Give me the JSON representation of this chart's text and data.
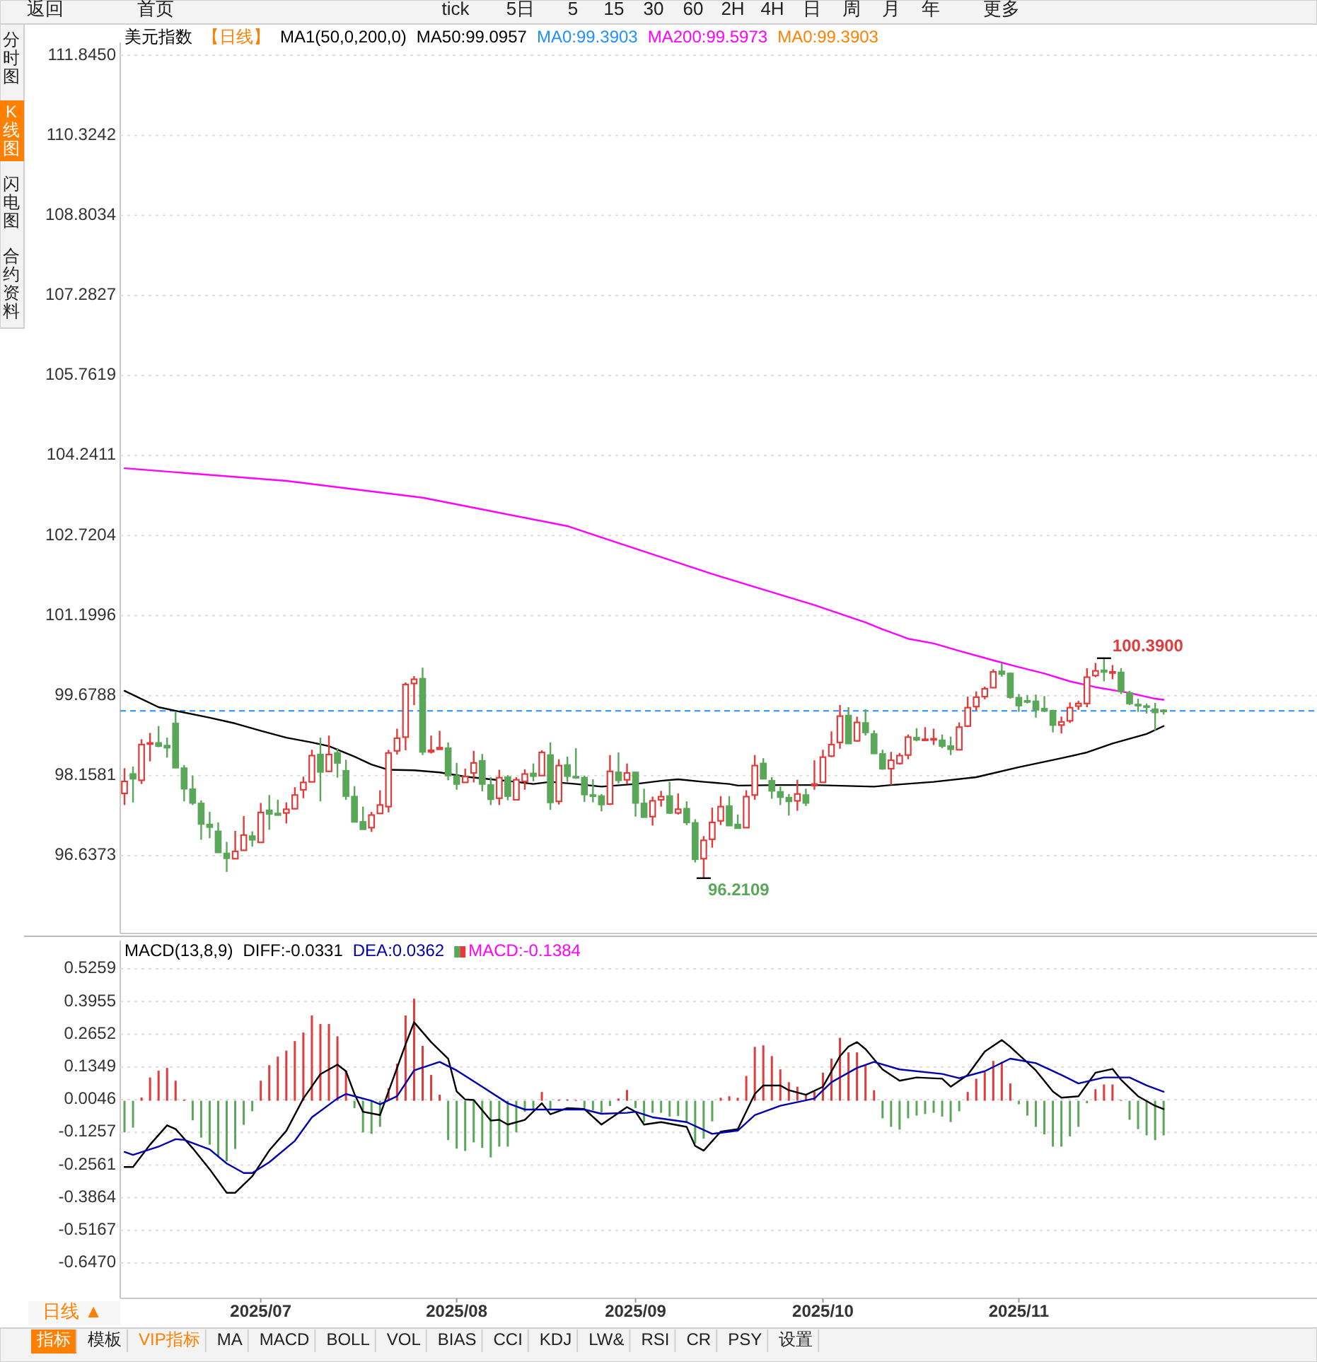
{
  "chart_data": [
    {
      "type": "other",
      "annotations": [
        "返回",
        "首页",
        "tick",
        "5日",
        "5",
        "15",
        "30",
        "60",
        "2H",
        "4H",
        "日",
        "周",
        "月",
        "年",
        "更多"
      ]
    },
    {
      "type": "other",
      "annotations": [
        "分时图",
        "K线图",
        "闪电图",
        "合约资料"
      ]
    },
    {
      "type": "candlestick",
      "title": "美元指数",
      "subtitle": "【日线】",
      "categories": [
        null,
        null,
        null,
        null,
        null,
        null,
        null,
        null,
        null,
        null,
        null,
        null,
        null,
        null,
        null,
        null,
        "2025/07",
        null,
        null,
        null,
        null,
        null,
        null,
        null,
        null,
        null,
        null,
        null,
        null,
        null,
        null,
        null,
        null,
        null,
        null,
        null,
        null,
        null,
        null,
        "2025/08",
        null,
        null,
        null,
        null,
        null,
        null,
        null,
        null,
        null,
        null,
        null,
        null,
        null,
        null,
        null,
        null,
        null,
        null,
        null,
        null,
        "2025/09",
        null,
        null,
        null,
        null,
        null,
        null,
        null,
        null,
        null,
        null,
        null,
        null,
        null,
        null,
        null,
        null,
        null,
        null,
        null,
        null,
        null,
        "2025/10",
        null,
        null,
        null,
        null,
        null,
        null,
        null,
        null,
        null,
        null,
        null,
        null,
        null,
        null,
        null,
        null,
        null,
        null,
        null,
        null,
        null,
        null,
        "2025/11",
        null,
        null,
        null,
        null,
        null,
        null,
        null,
        null,
        null,
        null,
        null,
        null,
        null,
        null,
        null,
        null,
        null
      ],
      "ohlc": [
        [
          97.82,
          98.3,
          97.6,
          98.05
        ],
        [
          98.19,
          98.33,
          97.65,
          98.1
        ],
        [
          98.07,
          98.85,
          98.0,
          98.75
        ],
        [
          98.76,
          98.97,
          98.43,
          98.78
        ],
        [
          98.78,
          99.1,
          98.7,
          98.72
        ],
        [
          98.73,
          98.88,
          98.5,
          98.69
        ],
        [
          99.15,
          99.37,
          98.31,
          98.31
        ],
        [
          98.3,
          98.36,
          97.67,
          97.91
        ],
        [
          97.9,
          98.16,
          97.6,
          97.64
        ],
        [
          97.63,
          97.69,
          96.94,
          97.24
        ],
        [
          97.23,
          97.47,
          96.97,
          97.18
        ],
        [
          97.1,
          97.27,
          96.7,
          96.7
        ],
        [
          96.68,
          96.9,
          96.33,
          96.59
        ],
        [
          96.58,
          97.11,
          96.58,
          96.72
        ],
        [
          96.74,
          97.39,
          96.74,
          97.03
        ],
        [
          97.01,
          97.1,
          96.81,
          96.94
        ],
        [
          96.89,
          97.64,
          96.89,
          97.46
        ],
        [
          97.5,
          97.79,
          97.13,
          97.43
        ],
        [
          97.44,
          97.7,
          97.4,
          97.41
        ],
        [
          97.45,
          97.65,
          97.25,
          97.52
        ],
        [
          97.53,
          97.94,
          97.52,
          97.79
        ],
        [
          97.89,
          98.14,
          97.73,
          98.03
        ],
        [
          98.04,
          98.65,
          98.04,
          98.54
        ],
        [
          98.56,
          98.88,
          97.67,
          98.23
        ],
        [
          98.24,
          98.92,
          98.24,
          98.56
        ],
        [
          98.59,
          98.68,
          98.12,
          98.4
        ],
        [
          98.25,
          98.46,
          97.7,
          97.77
        ],
        [
          97.76,
          97.96,
          97.27,
          97.28
        ],
        [
          97.28,
          97.57,
          97.14,
          97.14
        ],
        [
          97.17,
          97.47,
          97.09,
          97.41
        ],
        [
          97.44,
          97.88,
          97.43,
          97.6
        ],
        [
          97.57,
          98.65,
          97.46,
          98.59
        ],
        [
          98.63,
          99.05,
          98.56,
          98.87
        ],
        [
          98.89,
          99.93,
          98.64,
          99.89
        ],
        [
          99.91,
          100.05,
          99.5,
          99.99
        ],
        [
          100.0,
          100.21,
          98.55,
          98.61
        ],
        [
          98.61,
          98.92,
          98.58,
          98.64
        ],
        [
          98.66,
          99.01,
          98.65,
          98.69
        ],
        [
          98.68,
          98.79,
          98.07,
          98.16
        ],
        [
          98.15,
          98.4,
          97.89,
          98.0
        ],
        [
          98.03,
          98.29,
          98.03,
          98.14
        ],
        [
          98.21,
          98.63,
          98.03,
          98.4
        ],
        [
          98.44,
          98.57,
          97.86,
          98.0
        ],
        [
          97.98,
          98.13,
          97.6,
          97.71
        ],
        [
          97.73,
          98.27,
          97.6,
          98.12
        ],
        [
          98.13,
          98.17,
          97.69,
          97.77
        ],
        [
          97.7,
          98.13,
          97.7,
          98.08
        ],
        [
          98.05,
          98.28,
          97.89,
          98.19
        ],
        [
          98.2,
          98.39,
          98.05,
          98.15
        ],
        [
          98.16,
          98.64,
          98.16,
          98.6
        ],
        [
          98.55,
          98.79,
          97.51,
          97.65
        ],
        [
          97.67,
          98.47,
          97.61,
          98.35
        ],
        [
          98.36,
          98.52,
          98.04,
          98.15
        ],
        [
          98.14,
          98.68,
          98.1,
          98.12
        ],
        [
          98.12,
          98.16,
          97.66,
          97.8
        ],
        [
          97.79,
          98.09,
          97.65,
          97.78
        ],
        [
          97.77,
          97.81,
          97.48,
          97.61
        ],
        [
          97.62,
          98.55,
          97.6,
          98.24
        ],
        [
          98.22,
          98.6,
          98.01,
          98.07
        ],
        [
          98.08,
          98.39,
          98.0,
          98.21
        ],
        [
          98.22,
          98.23,
          97.38,
          97.64
        ],
        [
          97.63,
          97.91,
          97.37,
          97.37
        ],
        [
          97.38,
          97.76,
          97.21,
          97.68
        ],
        [
          97.7,
          97.87,
          97.57,
          97.76
        ],
        [
          97.77,
          98.04,
          97.43,
          97.45
        ],
        [
          97.45,
          97.82,
          97.42,
          97.52
        ],
        [
          97.53,
          97.67,
          97.22,
          97.27
        ],
        [
          97.26,
          97.33,
          96.51,
          96.57
        ],
        [
          96.58,
          97.01,
          96.2109,
          96.93
        ],
        [
          96.95,
          97.55,
          96.79,
          97.27
        ],
        [
          97.3,
          97.77,
          97.22,
          97.57
        ],
        [
          97.58,
          97.77,
          97.21,
          97.21
        ],
        [
          97.23,
          97.42,
          97.16,
          97.16
        ],
        [
          97.17,
          97.88,
          97.17,
          97.76
        ],
        [
          97.79,
          98.55,
          97.7,
          98.35
        ],
        [
          98.39,
          98.49,
          98.1,
          98.1
        ],
        [
          98.06,
          98.13,
          97.72,
          97.87
        ],
        [
          97.85,
          97.95,
          97.6,
          97.75
        ],
        [
          97.74,
          97.81,
          97.4,
          97.67
        ],
        [
          97.68,
          98.08,
          97.49,
          97.81
        ],
        [
          97.79,
          97.91,
          97.58,
          97.64
        ],
        [
          97.97,
          98.45,
          97.89,
          98.0
        ],
        [
          98.03,
          98.65,
          98.03,
          98.51
        ],
        [
          98.53,
          99.0,
          98.51,
          98.75
        ],
        [
          98.79,
          99.5,
          98.67,
          99.29
        ],
        [
          99.3,
          99.46,
          98.76,
          98.77
        ],
        [
          98.82,
          99.28,
          98.8,
          99.17
        ],
        [
          99.16,
          99.42,
          98.92,
          98.98
        ],
        [
          98.95,
          99.02,
          98.58,
          98.58
        ],
        [
          98.57,
          98.65,
          98.27,
          98.29
        ],
        [
          98.29,
          98.61,
          97.98,
          98.45
        ],
        [
          98.39,
          98.59,
          98.37,
          98.54
        ],
        [
          98.55,
          98.94,
          98.47,
          98.89
        ],
        [
          98.88,
          99.06,
          98.81,
          98.84
        ],
        [
          98.83,
          99.08,
          98.83,
          98.85
        ],
        [
          98.84,
          99.05,
          98.74,
          98.86
        ],
        [
          98.83,
          98.94,
          98.68,
          98.72
        ],
        [
          98.72,
          98.9,
          98.55,
          98.66
        ],
        [
          98.65,
          99.17,
          98.65,
          99.08
        ],
        [
          99.1,
          99.66,
          99.08,
          99.45
        ],
        [
          99.47,
          99.76,
          99.4,
          99.65
        ],
        [
          99.66,
          99.85,
          99.61,
          99.81
        ],
        [
          99.83,
          100.18,
          99.82,
          100.13
        ],
        [
          100.14,
          100.29,
          100.04,
          100.09
        ],
        [
          100.1,
          100.12,
          99.62,
          99.65
        ],
        [
          99.64,
          99.71,
          99.37,
          99.49
        ],
        [
          99.58,
          99.69,
          99.53,
          99.56
        ],
        [
          99.57,
          99.7,
          99.26,
          99.41
        ],
        [
          99.43,
          99.67,
          99.37,
          99.39
        ],
        [
          99.39,
          99.41,
          98.98,
          99.12
        ],
        [
          99.12,
          99.28,
          98.96,
          99.18
        ],
        [
          99.2,
          99.55,
          99.16,
          99.45
        ],
        [
          99.48,
          99.58,
          99.41,
          99.53
        ],
        [
          99.53,
          100.2,
          99.46,
          100.03
        ],
        [
          100.06,
          100.3,
          100.03,
          100.15
        ],
        [
          100.16,
          100.39,
          99.95,
          100.13
        ],
        [
          100.11,
          100.26,
          99.99,
          100.13
        ],
        [
          100.12,
          100.2,
          99.71,
          99.76
        ],
        [
          99.73,
          99.77,
          99.5,
          99.53
        ],
        [
          99.51,
          99.62,
          99.37,
          99.49
        ],
        [
          99.48,
          99.53,
          99.34,
          99.46
        ],
        [
          99.42,
          99.54,
          99.01,
          99.36
        ],
        [
          99.4,
          99.42,
          99.32,
          99.39
        ]
      ],
      "colors": [
        "#e03c3c",
        "#5aa75a",
        "#e03c3c",
        "#e03c3c",
        "#5aa75a",
        "#5aa75a",
        "#5aa75a",
        "#5aa75a",
        "#5aa75a",
        "#5aa75a",
        "#5aa75a",
        "#5aa75a",
        "#5aa75a",
        "#e03c3c",
        "#e03c3c",
        "#5aa75a",
        "#e03c3c",
        "#5aa75a",
        "#5aa75a",
        "#e03c3c",
        "#e03c3c",
        "#e03c3c",
        "#e03c3c",
        "#5aa75a",
        "#e03c3c",
        "#5aa75a",
        "#5aa75a",
        "#5aa75a",
        "#5aa75a",
        "#e03c3c",
        "#e03c3c",
        "#e03c3c",
        "#e03c3c",
        "#e03c3c",
        "#e03c3c",
        "#5aa75a",
        "#e03c3c",
        "#e03c3c",
        "#5aa75a",
        "#5aa75a",
        "#e03c3c",
        "#e03c3c",
        "#5aa75a",
        "#5aa75a",
        "#e03c3c",
        "#5aa75a",
        "#e03c3c",
        "#e03c3c",
        "#5aa75a",
        "#e03c3c",
        "#5aa75a",
        "#e03c3c",
        "#5aa75a",
        "#5aa75a",
        "#5aa75a",
        "#5aa75a",
        "#5aa75a",
        "#e03c3c",
        "#5aa75a",
        "#e03c3c",
        "#5aa75a",
        "#5aa75a",
        "#e03c3c",
        "#e03c3c",
        "#5aa75a",
        "#e03c3c",
        "#5aa75a",
        "#5aa75a",
        "#e03c3c",
        "#e03c3c",
        "#e03c3c",
        "#5aa75a",
        "#5aa75a",
        "#e03c3c",
        "#e03c3c",
        "#5aa75a",
        "#5aa75a",
        "#5aa75a",
        "#5aa75a",
        "#e03c3c",
        "#5aa75a",
        "#e03c3c",
        "#e03c3c",
        "#e03c3c",
        "#e03c3c",
        "#5aa75a",
        "#e03c3c",
        "#5aa75a",
        "#5aa75a",
        "#5aa75a",
        "#e03c3c",
        "#e03c3c",
        "#e03c3c",
        "#5aa75a",
        "#e03c3c",
        "#e03c3c",
        "#5aa75a",
        "#5aa75a",
        "#e03c3c",
        "#e03c3c",
        "#e03c3c",
        "#e03c3c",
        "#e03c3c",
        "#5aa75a",
        "#5aa75a",
        "#5aa75a",
        "#5aa75a",
        "#5aa75a",
        "#5aa75a",
        "#5aa75a",
        "#e03c3c",
        "#e03c3c",
        "#e03c3c",
        "#e03c3c",
        "#e03c3c",
        "#5aa75a",
        "#e03c3c",
        "#5aa75a",
        "#5aa75a",
        "#5aa75a",
        "#5aa75a",
        "#5aa75a",
        "#5aa75a"
      ],
      "series": [
        {
          "type": "line",
          "name": "MA50:99.0957",
          "color": "#000000",
          "values": [
            99.77,
            null,
            null,
            null,
            99.46,
            null,
            99.39,
            null,
            null,
            null,
            99.26,
            null,
            null,
            99.15,
            null,
            null,
            99.01,
            null,
            null,
            98.88,
            null,
            null,
            98.79,
            null,
            98.72,
            null,
            null,
            98.52,
            null,
            98.37,
            null,
            98.27,
            null,
            null,
            98.26,
            null,
            null,
            98.22,
            null,
            null,
            98.14,
            null,
            null,
            98.09,
            null,
            null,
            98.04,
            null,
            98.0,
            null,
            98.04,
            null,
            null,
            98.0,
            null,
            null,
            97.95,
            null,
            null,
            null,
            98.0,
            null,
            null,
            98.06,
            null,
            98.09,
            null,
            null,
            98.04,
            null,
            null,
            98.0,
            97.97,
            null,
            null,
            null,
            null,
            97.98,
            null,
            null,
            null,
            97.98,
            null,
            null,
            null,
            null,
            null,
            null,
            97.95,
            null,
            97.98,
            null,
            null,
            null,
            null,
            98.04,
            null,
            null,
            null,
            null,
            98.13,
            null,
            null,
            null,
            null,
            98.32,
            null,
            null,
            null,
            null,
            98.49,
            null,
            null,
            98.6,
            null,
            null,
            98.77,
            null,
            null,
            null,
            98.95,
            null,
            99.1
          ]
        },
        {
          "type": "line",
          "name": "MA200:99.5973",
          "color": "#ff00ff",
          "values": [
            104.0,
            null,
            null,
            null,
            null,
            null,
            null,
            null,
            null,
            null,
            null,
            null,
            null,
            null,
            null,
            null,
            null,
            null,
            null,
            103.76,
            null,
            null,
            null,
            null,
            null,
            null,
            null,
            null,
            null,
            null,
            null,
            null,
            null,
            null,
            null,
            103.44,
            null,
            null,
            null,
            null,
            null,
            null,
            null,
            null,
            null,
            null,
            null,
            null,
            null,
            null,
            null,
            null,
            102.9,
            null,
            null,
            null,
            null,
            null,
            null,
            null,
            102.47,
            null,
            null,
            null,
            null,
            null,
            null,
            null,
            null,
            101.99,
            null,
            null,
            null,
            null,
            null,
            null,
            null,
            null,
            null,
            null,
            null,
            101.4,
            null,
            null,
            null,
            null,
            null,
            101.07,
            null,
            100.94,
            null,
            null,
            100.76,
            null,
            null,
            100.67,
            null,
            null,
            100.53,
            null,
            null,
            null,
            100.35,
            null,
            null,
            100.22,
            null,
            null,
            100.1,
            null,
            null,
            99.95,
            null,
            null,
            99.84,
            null,
            null,
            null,
            99.73,
            null,
            null,
            99.62,
            99.6
          ]
        }
      ],
      "ref_lines": [
        {
          "axis": "y",
          "value": 99.3903,
          "label": "MA0:99.3903",
          "color": "#1e90ff",
          "line_style": "dashed"
        }
      ],
      "annotations": [
        "MA1(50,0,200,0)",
        "MA0:99.3903",
        "100.3900",
        "96.2109"
      ],
      "ylim": [
        95.16,
        112.09
      ],
      "yticks": [
        {
          "value": 111.845,
          "label": "111.8450"
        },
        {
          "value": 110.3242,
          "label": "110.3242"
        },
        {
          "value": 108.8034,
          "label": "108.8034"
        },
        {
          "value": 107.2827,
          "label": "107.2827"
        },
        {
          "value": 105.7619,
          "label": "105.7619"
        },
        {
          "value": 104.2411,
          "label": "104.2411"
        },
        {
          "value": 102.7204,
          "label": "102.7204"
        },
        {
          "value": 101.1996,
          "label": "101.1996"
        },
        {
          "value": 99.6788,
          "label": "99.6788"
        },
        {
          "value": 98.1581,
          "label": "98.1581"
        },
        {
          "value": 96.6373,
          "label": "96.6373"
        }
      ],
      "tick_labels": "y",
      "grid": "y",
      "legend": "top"
    },
    {
      "type": "bar",
      "title": "MACD(13,8,9)",
      "categories": [
        null,
        null,
        null,
        null,
        null,
        null,
        null,
        null,
        null,
        null,
        null,
        null,
        null,
        null,
        null,
        null,
        "2025/07",
        null,
        null,
        null,
        null,
        null,
        null,
        null,
        null,
        null,
        null,
        null,
        null,
        null,
        null,
        null,
        null,
        null,
        null,
        null,
        null,
        null,
        null,
        "2025/08",
        null,
        null,
        null,
        null,
        null,
        null,
        null,
        null,
        null,
        null,
        null,
        null,
        null,
        null,
        null,
        null,
        null,
        null,
        null,
        null,
        "2025/09",
        null,
        null,
        null,
        null,
        null,
        null,
        null,
        null,
        null,
        null,
        null,
        null,
        null,
        null,
        null,
        null,
        null,
        null,
        null,
        null,
        null,
        "2025/10",
        null,
        null,
        null,
        null,
        null,
        null,
        null,
        null,
        null,
        null,
        null,
        null,
        null,
        null,
        null,
        null,
        null,
        null,
        null,
        null,
        null,
        null,
        "2025/11",
        null,
        null,
        null,
        null,
        null,
        null,
        null,
        null,
        null,
        null,
        null,
        null,
        null,
        null,
        null,
        null,
        null
      ],
      "series": [
        {
          "type": "line",
          "name": "DIFF:-0.0331",
          "color": "#000000",
          "values": [
            -0.264,
            -0.264,
            null,
            -0.175,
            null,
            -0.098,
            -0.113,
            null,
            -0.189,
            null,
            -0.273,
            null,
            -0.367,
            -0.367,
            null,
            -0.301,
            null,
            -0.198,
            null,
            -0.12,
            null,
            0.009,
            null,
            0.106,
            null,
            0.144,
            0.118,
            0.027,
            -0.044,
            null,
            -0.057,
            0.037,
            null,
            0.225,
            0.313,
            null,
            0.234,
            null,
            0.168,
            0.037,
            0.005,
            0.003,
            null,
            -0.079,
            -0.076,
            -0.095,
            null,
            -0.076,
            null,
            -0.01,
            -0.054,
            null,
            -0.029,
            null,
            -0.033,
            null,
            -0.095,
            null,
            null,
            -0.025,
            -0.044,
            -0.095,
            null,
            -0.085,
            null,
            null,
            -0.104,
            -0.18,
            -0.199,
            null,
            -0.123,
            null,
            -0.113,
            null,
            0.027,
            0.061,
            null,
            0.061,
            0.042,
            null,
            0.024,
            null,
            0.056,
            null,
            0.178,
            0.216,
            0.234,
            0.206,
            null,
            0.125,
            null,
            0.08,
            null,
            0.093,
            null,
            null,
            0.088,
            0.056,
            null,
            0.103,
            null,
            0.196,
            null,
            0.242,
            0.215,
            null,
            null,
            0.121,
            null,
            0.037,
            0.012,
            null,
            0.018,
            null,
            0.112,
            null,
            0.127,
            0.084,
            null,
            0.018,
            null,
            -0.02,
            -0.033
          ]
        },
        {
          "type": "line",
          "name": "DEA:0.0362",
          "color": "#0000b0",
          "values": [
            -0.204,
            -0.216,
            null,
            null,
            -0.183,
            null,
            -0.153,
            -0.156,
            null,
            null,
            -0.194,
            null,
            -0.25,
            null,
            -0.288,
            -0.288,
            null,
            -0.245,
            null,
            null,
            -0.16,
            null,
            -0.066,
            null,
            null,
            0.009,
            0.027,
            null,
            null,
            0,
            -0.014,
            null,
            0.018,
            null,
            0.121,
            null,
            null,
            0.155,
            null,
            0.121,
            null,
            null,
            0.056,
            null,
            null,
            -0.01,
            null,
            -0.035,
            null,
            null,
            null,
            -0.035,
            null,
            null,
            -0.035,
            null,
            -0.052,
            null,
            null,
            -0.048,
            -0.044,
            null,
            -0.066,
            null,
            null,
            null,
            -0.085,
            null,
            null,
            -0.132,
            null,
            null,
            -0.119,
            null,
            -0.057,
            null,
            null,
            -0.02,
            null,
            null,
            null,
            0.009,
            null,
            0.074,
            null,
            null,
            0.131,
            null,
            0.155,
            null,
            null,
            0.125,
            null,
            null,
            null,
            null,
            0.107,
            null,
            0.09,
            null,
            null,
            0.118,
            null,
            null,
            0.168,
            null,
            null,
            0.15,
            null,
            null,
            0.103,
            null,
            0.069,
            null,
            null,
            0.093,
            null,
            null,
            0.093,
            null,
            0.061,
            null,
            0.036
          ]
        },
        {
          "type": "bar",
          "name": "MACD:-0.1384",
          "color": "#ff00ff",
          "values": [
            -0.126,
            -0.107,
            0.013,
            0.093,
            0.12,
            0.131,
            0.08,
            0.005,
            -0.078,
            -0.147,
            -0.175,
            -0.222,
            -0.241,
            -0.192,
            -0.096,
            -0.042,
            0.08,
            0.142,
            0.176,
            0.2,
            0.238,
            0.272,
            0.34,
            0.306,
            0.306,
            0.257,
            0.12,
            -0.029,
            -0.126,
            -0.132,
            -0.104,
            0.05,
            0.148,
            0.34,
            0.407,
            0.219,
            0.103,
            0.024,
            -0.157,
            -0.191,
            -0.2,
            -0.166,
            -0.188,
            -0.226,
            -0.183,
            -0.183,
            -0.126,
            -0.044,
            -0.033,
            0.035,
            -0.034,
            0.005,
            0.005,
            0.003,
            -0.029,
            -0.038,
            -0.048,
            -0.021,
            0.009,
            0.043,
            -0.029,
            -0.085,
            -0.048,
            -0.048,
            -0.063,
            -0.061,
            -0.085,
            -0.17,
            -0.151,
            -0.082,
            0.012,
            0.018,
            0.012,
            0.099,
            0.215,
            0.221,
            0.178,
            0.125,
            0.074,
            0.056,
            0.024,
            0.037,
            0.112,
            0.168,
            0.251,
            0.193,
            0.193,
            0.144,
            0.042,
            -0.07,
            -0.104,
            -0.115,
            -0.07,
            -0.059,
            -0.053,
            -0.048,
            -0.063,
            -0.085,
            -0.042,
            0.035,
            0.088,
            0.118,
            0.159,
            0.155,
            0.069,
            -0.014,
            -0.059,
            -0.104,
            -0.134,
            -0.183,
            -0.183,
            -0.142,
            -0.104,
            -0.01,
            0.046,
            0.065,
            0.065,
            0.003,
            -0.076,
            -0.113,
            -0.138,
            -0.157,
            -0.138
          ],
          "colors": [
            "#5aa75a",
            "#5aa75a",
            "#e03c3c",
            "#e03c3c",
            "#e03c3c",
            "#e03c3c",
            "#e03c3c",
            "#e03c3c",
            "#5aa75a",
            "#5aa75a",
            "#5aa75a",
            "#5aa75a",
            "#5aa75a",
            "#5aa75a",
            "#5aa75a",
            "#5aa75a",
            "#e03c3c",
            "#e03c3c",
            "#e03c3c",
            "#e03c3c",
            "#e03c3c",
            "#e03c3c",
            "#e03c3c",
            "#e03c3c",
            "#e03c3c",
            "#e03c3c",
            "#e03c3c",
            "#5aa75a",
            "#5aa75a",
            "#5aa75a",
            "#5aa75a",
            "#e03c3c",
            "#e03c3c",
            "#e03c3c",
            "#e03c3c",
            "#e03c3c",
            "#e03c3c",
            "#e03c3c",
            "#5aa75a",
            "#5aa75a",
            "#5aa75a",
            "#5aa75a",
            "#5aa75a",
            "#5aa75a",
            "#5aa75a",
            "#5aa75a",
            "#5aa75a",
            "#5aa75a",
            "#5aa75a",
            "#e03c3c",
            "#5aa75a",
            "#e03c3c",
            "#e03c3c",
            "#e03c3c",
            "#5aa75a",
            "#5aa75a",
            "#5aa75a",
            "#5aa75a",
            "#e03c3c",
            "#e03c3c",
            "#5aa75a",
            "#5aa75a",
            "#5aa75a",
            "#5aa75a",
            "#5aa75a",
            "#5aa75a",
            "#5aa75a",
            "#5aa75a",
            "#5aa75a",
            "#5aa75a",
            "#e03c3c",
            "#e03c3c",
            "#e03c3c",
            "#e03c3c",
            "#e03c3c",
            "#e03c3c",
            "#e03c3c",
            "#e03c3c",
            "#e03c3c",
            "#e03c3c",
            "#e03c3c",
            "#e03c3c",
            "#e03c3c",
            "#e03c3c",
            "#e03c3c",
            "#e03c3c",
            "#e03c3c",
            "#e03c3c",
            "#e03c3c",
            "#5aa75a",
            "#5aa75a",
            "#5aa75a",
            "#5aa75a",
            "#5aa75a",
            "#5aa75a",
            "#5aa75a",
            "#5aa75a",
            "#5aa75a",
            "#5aa75a",
            "#e03c3c",
            "#e03c3c",
            "#e03c3c",
            "#e03c3c",
            "#e03c3c",
            "#e03c3c",
            "#5aa75a",
            "#5aa75a",
            "#5aa75a",
            "#5aa75a",
            "#5aa75a",
            "#5aa75a",
            "#5aa75a",
            "#5aa75a",
            "#5aa75a",
            "#e03c3c",
            "#e03c3c",
            "#e03c3c",
            "#e03c3c",
            "#5aa75a",
            "#5aa75a",
            "#5aa75a",
            "#5aa75a",
            "#5aa75a"
          ]
        }
      ],
      "ylim": [
        -0.788,
        0.639
      ],
      "yticks": [
        0.5259,
        0.3955,
        0.2652,
        0.1349,
        0.0046,
        -0.1257,
        -0.2561,
        -0.3864,
        -0.5167,
        {
          "value": -0.647,
          "label": "-0.6470"
        }
      ],
      "grid": "y",
      "legend": "top"
    },
    {
      "type": "other",
      "annotations": [
        "日线 ▲",
        "指标",
        "模板",
        "VIP指标",
        "MA",
        "MACD",
        "BOLL",
        "VOL",
        "BIAS",
        "CCI",
        "KDJ",
        "LW&",
        "RSI",
        "CR",
        "PSY",
        "设置"
      ]
    }
  ]
}
